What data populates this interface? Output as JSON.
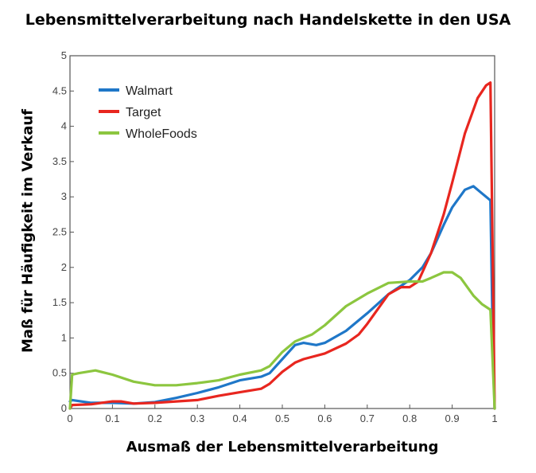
{
  "chart_data": {
    "type": "line",
    "title": "Lebensmittelverarbeitung nach Handelskette in den USA",
    "xlabel": "Ausmaß der Lebensmittelverarbeitung",
    "ylabel": "Maß für Häufigkeit im Verkauf",
    "xlim": [
      0,
      1
    ],
    "ylim": [
      0,
      5
    ],
    "xticks": [
      "0",
      "0.1",
      "0.2",
      "0.3",
      "0.4",
      "0.5",
      "0.6",
      "0.7",
      "0.8",
      "0.9",
      "1"
    ],
    "yticks": [
      "0",
      "0.5",
      "1",
      "1.5",
      "2",
      "2.5",
      "3",
      "3.5",
      "4",
      "4.5",
      "5"
    ],
    "grid": false,
    "legend_position": "top-left",
    "series": [
      {
        "name": "Walmart",
        "color": "#1f77c8",
        "x": [
          0,
          0.005,
          0.05,
          0.1,
          0.15,
          0.2,
          0.25,
          0.3,
          0.35,
          0.4,
          0.45,
          0.47,
          0.5,
          0.53,
          0.55,
          0.58,
          0.6,
          0.65,
          0.7,
          0.75,
          0.8,
          0.83,
          0.85,
          0.88,
          0.9,
          0.93,
          0.95,
          0.97,
          0.99,
          0.995,
          1
        ],
        "y": [
          0.1,
          0.12,
          0.08,
          0.08,
          0.07,
          0.09,
          0.15,
          0.22,
          0.3,
          0.4,
          0.45,
          0.5,
          0.7,
          0.9,
          0.93,
          0.9,
          0.93,
          1.1,
          1.35,
          1.62,
          1.82,
          2.0,
          2.2,
          2.6,
          2.85,
          3.1,
          3.15,
          3.05,
          2.95,
          1.2,
          0
        ]
      },
      {
        "name": "Target",
        "color": "#e8261f",
        "x": [
          0,
          0.005,
          0.05,
          0.1,
          0.12,
          0.15,
          0.2,
          0.25,
          0.3,
          0.35,
          0.4,
          0.45,
          0.47,
          0.5,
          0.53,
          0.55,
          0.6,
          0.65,
          0.68,
          0.7,
          0.75,
          0.78,
          0.8,
          0.82,
          0.85,
          0.88,
          0.9,
          0.93,
          0.96,
          0.98,
          0.99,
          1
        ],
        "y": [
          0,
          0.05,
          0.06,
          0.1,
          0.1,
          0.07,
          0.08,
          0.1,
          0.12,
          0.18,
          0.23,
          0.28,
          0.35,
          0.52,
          0.65,
          0.7,
          0.78,
          0.92,
          1.05,
          1.2,
          1.62,
          1.72,
          1.72,
          1.8,
          2.2,
          2.75,
          3.2,
          3.9,
          4.4,
          4.58,
          4.62,
          0
        ]
      },
      {
        "name": "WholeFoods",
        "color": "#8cc63f",
        "x": [
          0,
          0.005,
          0.02,
          0.06,
          0.1,
          0.15,
          0.2,
          0.25,
          0.3,
          0.35,
          0.4,
          0.45,
          0.47,
          0.5,
          0.53,
          0.57,
          0.6,
          0.65,
          0.7,
          0.75,
          0.8,
          0.83,
          0.85,
          0.88,
          0.9,
          0.92,
          0.95,
          0.97,
          0.99,
          1
        ],
        "y": [
          0,
          0.48,
          0.5,
          0.54,
          0.48,
          0.38,
          0.33,
          0.33,
          0.36,
          0.4,
          0.48,
          0.54,
          0.6,
          0.8,
          0.95,
          1.05,
          1.18,
          1.45,
          1.63,
          1.78,
          1.8,
          1.8,
          1.85,
          1.93,
          1.93,
          1.85,
          1.6,
          1.48,
          1.4,
          0
        ]
      }
    ]
  }
}
